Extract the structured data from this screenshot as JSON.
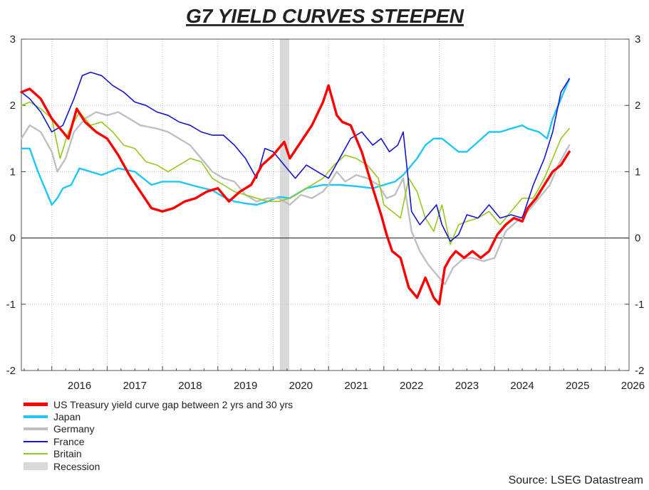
{
  "chart_data": {
    "type": "line",
    "title": "G7 YIELD CURVES STEEPEN",
    "xlabel": "",
    "ylabel": "",
    "ylim": [
      -2,
      3
    ],
    "yticks": [
      -2,
      -1,
      0,
      1,
      2,
      3
    ],
    "ytick_labels": [
      "-2",
      "-1",
      "0",
      "1",
      "2",
      "3"
    ],
    "xlim": [
      2015.45,
      2026.43
    ],
    "xtick_labels": [
      "2016",
      "2017",
      "2018",
      "2019",
      "2020",
      "2021",
      "2022",
      "2023",
      "2024",
      "2025",
      "2026"
    ],
    "grid": true,
    "zero_line": true,
    "legend_position": "bottom-left",
    "recession": {
      "name": "Recession",
      "start": 2020.12,
      "end": 2020.29,
      "color": "#d9d9d9"
    },
    "series": [
      {
        "name": "US Treasury yield curve gap between 2 yrs and 30 yrs",
        "color": "#ff0000",
        "x": [
          2015.45,
          2015.6,
          2015.8,
          2016.0,
          2016.3,
          2016.45,
          2016.6,
          2016.8,
          2017.0,
          2017.2,
          2017.4,
          2017.6,
          2017.8,
          2018.0,
          2018.2,
          2018.4,
          2018.6,
          2018.8,
          2019.0,
          2019.2,
          2019.4,
          2019.6,
          2019.8,
          2020.0,
          2020.1,
          2020.2,
          2020.3,
          2020.5,
          2020.7,
          2020.9,
          2021.0,
          2021.15,
          2021.25,
          2021.4,
          2021.6,
          2021.8,
          2021.95,
          2022.05,
          2022.15,
          2022.3,
          2022.45,
          2022.6,
          2022.75,
          2022.9,
          2023.0,
          2023.1,
          2023.2,
          2023.3,
          2023.45,
          2023.6,
          2023.75,
          2023.9,
          2024.05,
          2024.2,
          2024.35,
          2024.5,
          2024.6,
          2024.75,
          2024.9,
          2025.05,
          2025.2,
          2025.35
        ],
        "values": [
          2.2,
          2.25,
          2.1,
          1.8,
          1.5,
          1.95,
          1.75,
          1.6,
          1.5,
          1.25,
          0.95,
          0.7,
          0.45,
          0.4,
          0.45,
          0.55,
          0.6,
          0.7,
          0.75,
          0.55,
          0.7,
          0.8,
          1.1,
          1.25,
          1.35,
          1.45,
          1.2,
          1.45,
          1.7,
          2.05,
          2.3,
          1.85,
          1.75,
          1.7,
          1.3,
          0.75,
          0.35,
          0.05,
          -0.2,
          -0.3,
          -0.75,
          -0.9,
          -0.6,
          -0.9,
          -1.0,
          -0.45,
          -0.3,
          -0.2,
          -0.3,
          -0.2,
          -0.3,
          -0.2,
          0.05,
          0.2,
          0.3,
          0.25,
          0.45,
          0.6,
          0.8,
          1.0,
          1.1,
          1.3
        ]
      },
      {
        "name": "Japan",
        "color": "#1ec8f5",
        "x": [
          2015.45,
          2015.6,
          2015.75,
          2015.9,
          2016.0,
          2016.1,
          2016.2,
          2016.35,
          2016.5,
          2016.7,
          2016.9,
          2017.2,
          2017.5,
          2017.8,
          2018.0,
          2018.3,
          2018.6,
          2018.9,
          2019.1,
          2019.3,
          2019.5,
          2019.7,
          2019.9,
          2020.1,
          2020.3,
          2020.6,
          2020.9,
          2021.2,
          2021.5,
          2021.8,
          2022.0,
          2022.2,
          2022.35,
          2022.5,
          2022.6,
          2022.75,
          2022.9,
          2023.05,
          2023.2,
          2023.35,
          2023.5,
          2023.7,
          2023.9,
          2024.1,
          2024.3,
          2024.5,
          2024.6,
          2024.8,
          2024.95,
          2025.05,
          2025.15,
          2025.25,
          2025.35
        ],
        "values": [
          1.35,
          1.35,
          1.0,
          0.7,
          0.5,
          0.6,
          0.75,
          0.8,
          1.05,
          1.0,
          0.95,
          1.05,
          1.0,
          0.8,
          0.85,
          0.85,
          0.78,
          0.72,
          0.62,
          0.55,
          0.52,
          0.5,
          0.55,
          0.62,
          0.6,
          0.75,
          0.8,
          0.8,
          0.78,
          0.75,
          0.8,
          0.85,
          0.95,
          1.1,
          1.2,
          1.4,
          1.5,
          1.5,
          1.4,
          1.3,
          1.3,
          1.45,
          1.6,
          1.6,
          1.65,
          1.7,
          1.65,
          1.6,
          1.5,
          1.8,
          2.0,
          2.2,
          2.4
        ]
      },
      {
        "name": "Germany",
        "color": "#c0c0c0",
        "x": [
          2015.45,
          2015.6,
          2015.8,
          2016.0,
          2016.1,
          2016.25,
          2016.4,
          2016.6,
          2016.8,
          2017.0,
          2017.2,
          2017.4,
          2017.6,
          2017.9,
          2018.1,
          2018.3,
          2018.5,
          2018.7,
          2018.9,
          2019.1,
          2019.3,
          2019.5,
          2019.7,
          2019.9,
          2020.1,
          2020.3,
          2020.5,
          2020.7,
          2020.9,
          2021.0,
          2021.15,
          2021.3,
          2021.5,
          2021.7,
          2021.9,
          2022.05,
          2022.2,
          2022.35,
          2022.5,
          2022.65,
          2022.8,
          2022.95,
          2023.1,
          2023.25,
          2023.45,
          2023.6,
          2023.8,
          2024.0,
          2024.2,
          2024.4,
          2024.6,
          2024.8,
          2025.0,
          2025.15,
          2025.35
        ],
        "values": [
          1.5,
          1.7,
          1.6,
          1.3,
          1.0,
          1.2,
          1.6,
          1.8,
          1.9,
          1.85,
          1.9,
          1.8,
          1.7,
          1.65,
          1.6,
          1.5,
          1.4,
          1.2,
          1.0,
          0.9,
          0.85,
          0.65,
          0.55,
          0.6,
          0.6,
          0.5,
          0.65,
          0.6,
          0.7,
          0.8,
          1.0,
          0.85,
          0.95,
          0.9,
          0.8,
          0.6,
          0.65,
          0.9,
          0.1,
          -0.2,
          -0.4,
          -0.55,
          -0.7,
          -0.45,
          -0.3,
          -0.3,
          -0.35,
          -0.3,
          0.1,
          0.25,
          0.4,
          0.6,
          0.8,
          1.1,
          1.4
        ]
      },
      {
        "name": "France",
        "color": "#1414d2",
        "x": [
          2015.45,
          2015.6,
          2015.8,
          2016.0,
          2016.2,
          2016.4,
          2016.55,
          2016.7,
          2016.9,
          2017.1,
          2017.3,
          2017.5,
          2017.7,
          2017.9,
          2018.1,
          2018.3,
          2018.5,
          2018.7,
          2018.9,
          2019.1,
          2019.3,
          2019.5,
          2019.7,
          2019.85,
          2020.0,
          2020.2,
          2020.4,
          2020.6,
          2020.8,
          2021.0,
          2021.2,
          2021.4,
          2021.6,
          2021.8,
          2021.95,
          2022.1,
          2022.25,
          2022.35,
          2022.5,
          2022.65,
          2022.8,
          2022.95,
          2023.05,
          2023.2,
          2023.35,
          2023.5,
          2023.7,
          2023.9,
          2024.1,
          2024.3,
          2024.5,
          2024.7,
          2024.9,
          2025.05,
          2025.2,
          2025.35
        ],
        "values": [
          2.2,
          2.1,
          1.9,
          1.6,
          1.7,
          2.1,
          2.45,
          2.5,
          2.45,
          2.3,
          2.2,
          2.05,
          2.0,
          1.9,
          1.85,
          1.75,
          1.7,
          1.6,
          1.55,
          1.55,
          1.4,
          1.2,
          0.9,
          1.35,
          1.3,
          1.1,
          0.9,
          1.1,
          1.0,
          0.9,
          1.2,
          1.5,
          1.6,
          1.4,
          1.5,
          1.3,
          1.4,
          1.6,
          0.4,
          0.2,
          0.35,
          0.5,
          0.2,
          -0.05,
          0.05,
          0.35,
          0.3,
          0.5,
          0.3,
          0.35,
          0.3,
          0.8,
          1.2,
          1.6,
          2.2,
          2.4
        ]
      },
      {
        "name": "Britain",
        "color": "#96c81e",
        "x": [
          2015.45,
          2015.6,
          2015.8,
          2016.0,
          2016.15,
          2016.3,
          2016.5,
          2016.7,
          2016.9,
          2017.1,
          2017.3,
          2017.5,
          2017.7,
          2017.9,
          2018.1,
          2018.3,
          2018.5,
          2018.7,
          2018.9,
          2019.1,
          2019.3,
          2019.5,
          2019.7,
          2019.9,
          2020.1,
          2020.3,
          2020.5,
          2020.7,
          2020.9,
          2021.1,
          2021.3,
          2021.5,
          2021.7,
          2021.9,
          2022.0,
          2022.15,
          2022.3,
          2022.45,
          2022.6,
          2022.75,
          2022.9,
          2023.05,
          2023.2,
          2023.35,
          2023.5,
          2023.7,
          2023.9,
          2024.1,
          2024.3,
          2024.5,
          2024.7,
          2024.9,
          2025.05,
          2025.2,
          2025.35
        ],
        "values": [
          2.0,
          2.05,
          1.95,
          1.8,
          1.2,
          1.6,
          1.9,
          1.7,
          1.75,
          1.6,
          1.4,
          1.35,
          1.15,
          1.1,
          1.0,
          1.1,
          1.2,
          1.15,
          0.9,
          0.8,
          0.7,
          0.65,
          0.6,
          0.55,
          0.55,
          0.6,
          0.7,
          0.8,
          0.9,
          1.1,
          1.25,
          1.2,
          1.1,
          0.9,
          0.5,
          0.4,
          0.3,
          0.9,
          0.7,
          0.3,
          0.1,
          0.5,
          -0.1,
          0.2,
          0.25,
          0.3,
          0.4,
          0.2,
          0.4,
          0.6,
          0.6,
          0.9,
          1.2,
          1.5,
          1.65
        ]
      }
    ]
  },
  "legend": {
    "items": [
      {
        "label": "US Treasury yield curve gap between 2 yrs and 30 yrs",
        "color": "#ff0000"
      },
      {
        "label": "Japan",
        "color": "#1ec8f5"
      },
      {
        "label": "Germany",
        "color": "#c0c0c0"
      },
      {
        "label": "France",
        "color": "#1414d2"
      },
      {
        "label": "Britain",
        "color": "#96c81e"
      },
      {
        "label": "Recession",
        "color": "#d9d9d9"
      }
    ]
  },
  "source": "Source: LSEG Datastream"
}
